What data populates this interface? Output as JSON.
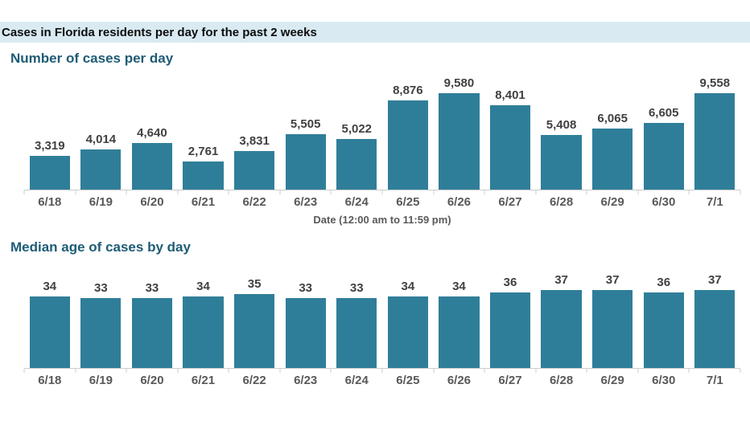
{
  "page": {
    "header": "Cases in Florida residents per day for the past 2 weeks"
  },
  "colors": {
    "bar": "#2f7e99",
    "header_band_bg": "#d9eaf2",
    "section_title": "#1d5c75",
    "value_label": "#414042",
    "date_label": "#58595b",
    "axis_line": "#cccccc"
  },
  "chart_data": [
    {
      "type": "bar",
      "title": "Number of cases per day",
      "xlabel": "Date (12:00 am to 11:59 pm)",
      "categories": [
        "6/18",
        "6/19",
        "6/20",
        "6/21",
        "6/22",
        "6/23",
        "6/24",
        "6/25",
        "6/26",
        "6/27",
        "6/28",
        "6/29",
        "6/30",
        "7/1"
      ],
      "values": [
        3319,
        4014,
        4640,
        2761,
        3831,
        5505,
        5022,
        8876,
        9580,
        8401,
        5408,
        6065,
        6605,
        9558
      ],
      "value_labels": [
        "3,319",
        "4,014",
        "4,640",
        "2,761",
        "3,831",
        "5,505",
        "5,022",
        "8,876",
        "9,580",
        "8,401",
        "5,408",
        "6,065",
        "6,605",
        "9,558"
      ],
      "ylim": [
        0,
        9580
      ],
      "grid": false,
      "legend": "none",
      "bar_color": "#2f7e99"
    },
    {
      "type": "bar",
      "title": "Median age of cases by day",
      "xlabel": "",
      "categories": [
        "6/18",
        "6/19",
        "6/20",
        "6/21",
        "6/22",
        "6/23",
        "6/24",
        "6/25",
        "6/26",
        "6/27",
        "6/28",
        "6/29",
        "6/30",
        "7/1"
      ],
      "values": [
        34,
        33,
        33,
        34,
        35,
        33,
        33,
        34,
        34,
        36,
        37,
        37,
        36,
        37
      ],
      "value_labels": [
        "34",
        "33",
        "33",
        "34",
        "35",
        "33",
        "33",
        "34",
        "34",
        "36",
        "37",
        "37",
        "36",
        "37"
      ],
      "ylim": [
        0,
        37
      ],
      "grid": false,
      "legend": "none",
      "bar_color": "#2f7e99"
    }
  ]
}
